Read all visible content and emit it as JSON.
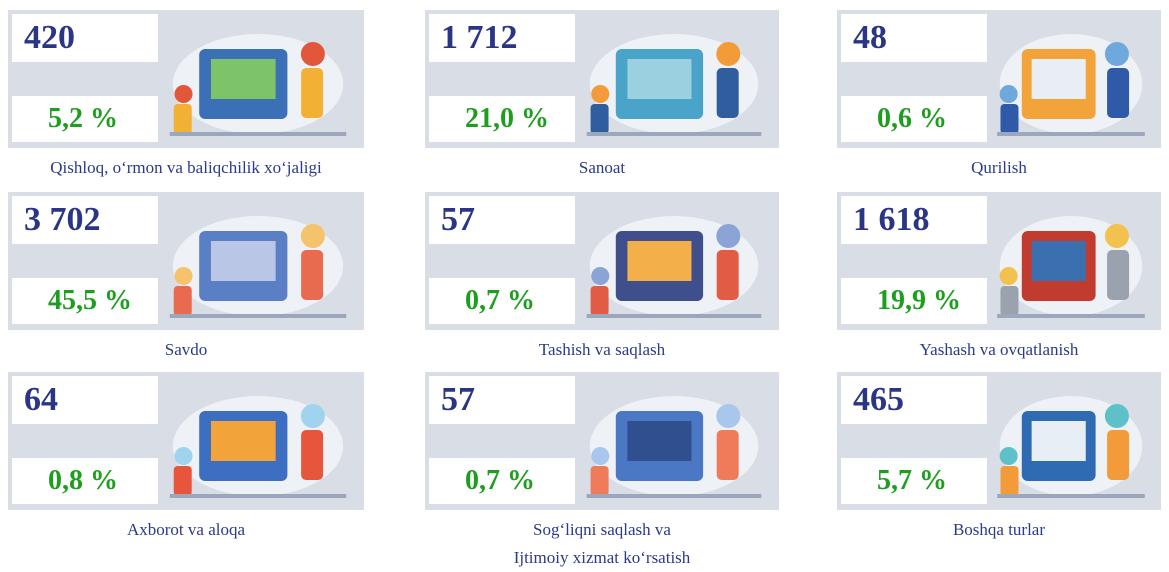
{
  "cards": [
    {
      "count": "420",
      "share": "5,2 %",
      "label": [
        "Qishloq, o‘rmon va baliqchilik xo‘jaligi"
      ]
    },
    {
      "count": "1 712",
      "share": "21,0 %",
      "label": [
        "Sanoat"
      ]
    },
    {
      "count": "48",
      "share": "0,6 %",
      "label": [
        "Qurilish"
      ]
    },
    {
      "count": "3 702",
      "share": "45,5 %",
      "label": [
        "Savdo"
      ]
    },
    {
      "count": "57",
      "share": "0,7 %",
      "label": [
        "Tashish va saqlash"
      ]
    },
    {
      "count": "1 618",
      "share": "19,9 %",
      "label": [
        "Yashash va ovqatlanish"
      ]
    },
    {
      "count": "64",
      "share": "0,8 %",
      "label": [
        "Axborot va aloqa"
      ]
    },
    {
      "count": "57",
      "share": "0,7 %",
      "label": [
        "Sog‘liqni saqlash va",
        "Ijtimoiy xizmat ko‘rsatish"
      ]
    },
    {
      "count": "465",
      "share": "5,7 %",
      "label": [
        "Boshqa turlar"
      ]
    }
  ]
}
